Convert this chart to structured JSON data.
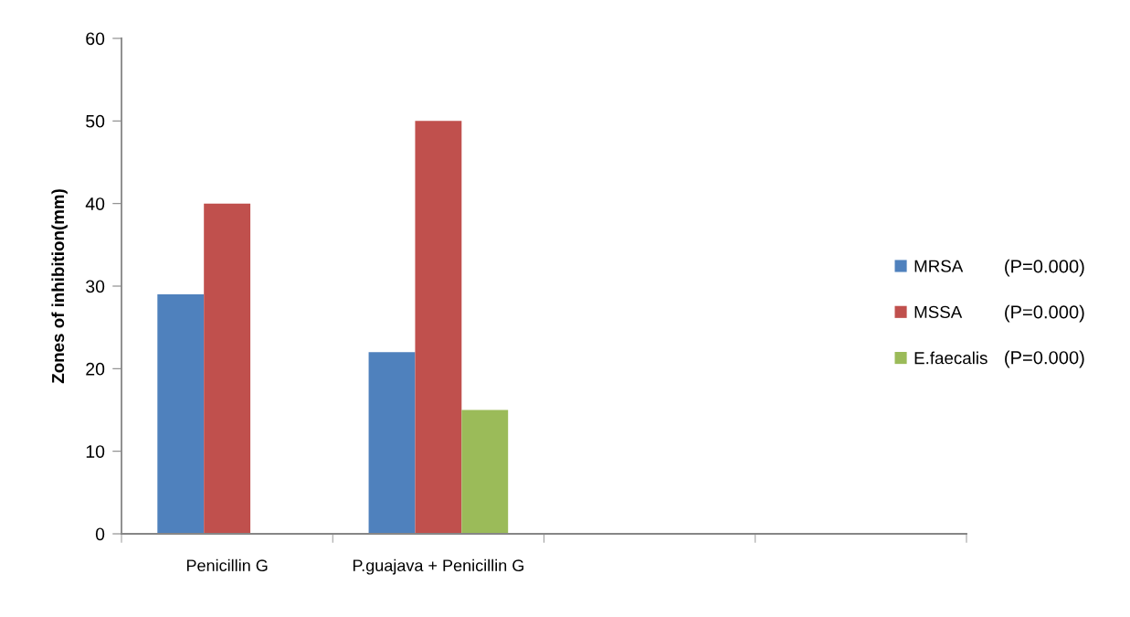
{
  "chart_data": {
    "type": "bar",
    "categories": [
      "Penicillin G",
      "P.guajava + Penicillin G",
      null,
      null
    ],
    "series": [
      {
        "name": "MRSA",
        "color": "#4f81bd",
        "values": [
          29,
          22,
          null,
          null
        ]
      },
      {
        "name": "MSSA",
        "color": "#c0504d",
        "values": [
          40,
          50,
          null,
          null
        ]
      },
      {
        "name": "E.faecalis",
        "color": "#9bbb59",
        "values": [
          null,
          15,
          null,
          null
        ]
      }
    ],
    "ylabel": "Zones of inhibition(mm)",
    "ylim": [
      0,
      60
    ],
    "yticks": [
      0,
      10,
      20,
      30,
      40,
      50,
      60
    ],
    "grid": false,
    "legend": "right",
    "annotations": [
      "(P=0.000)",
      "(P=0.000)",
      "(P=0.000)"
    ]
  }
}
